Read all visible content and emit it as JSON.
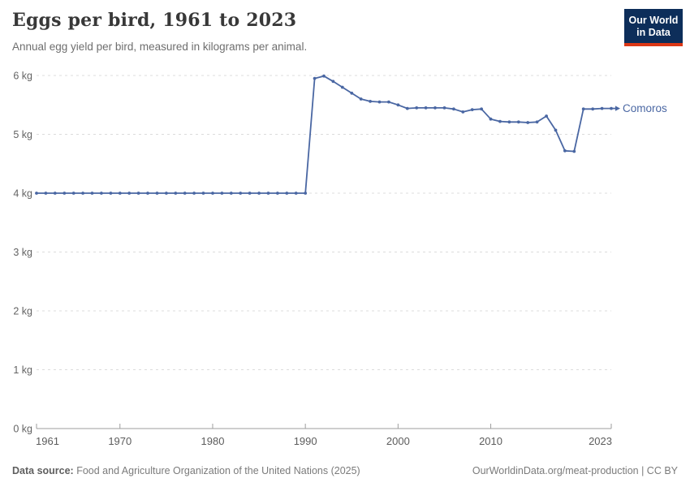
{
  "header": {
    "title": "Eggs per bird, 1961 to 2023",
    "subtitle": "Annual egg yield per bird, measured in kilograms per animal.",
    "logo": {
      "line1": "Our World",
      "line2": "in Data",
      "bg_color": "#0d2e5a",
      "accent_color": "#dc3715"
    }
  },
  "chart_data": {
    "type": "line",
    "title": "Eggs per bird, 1961 to 2023",
    "xlabel": "",
    "ylabel": "kg",
    "ylim": [
      0,
      6
    ],
    "y_ticks": [
      0,
      1,
      2,
      3,
      4,
      5,
      6
    ],
    "y_tick_labels": [
      "0 kg",
      "1 kg",
      "2 kg",
      "3 kg",
      "4 kg",
      "5 kg",
      "6 kg"
    ],
    "x_ticks": [
      1961,
      1970,
      1980,
      1990,
      2000,
      2010,
      2023
    ],
    "xlim": [
      1961,
      2023
    ],
    "grid": "horizontal-dashed",
    "legend_position": "end-of-line-label",
    "colors": {
      "line": "#4a67a3",
      "grid": "#dcdcdc",
      "axis": "#9e9e9e",
      "tick_text": "#636363"
    },
    "series": [
      {
        "name": "Comoros",
        "color": "#4a67a3",
        "x": [
          1961,
          1962,
          1963,
          1964,
          1965,
          1966,
          1967,
          1968,
          1969,
          1970,
          1971,
          1972,
          1973,
          1974,
          1975,
          1976,
          1977,
          1978,
          1979,
          1980,
          1981,
          1982,
          1983,
          1984,
          1985,
          1986,
          1987,
          1988,
          1989,
          1990,
          1991,
          1992,
          1993,
          1994,
          1995,
          1996,
          1997,
          1998,
          1999,
          2000,
          2001,
          2002,
          2003,
          2004,
          2005,
          2006,
          2007,
          2008,
          2009,
          2010,
          2011,
          2012,
          2013,
          2014,
          2015,
          2016,
          2017,
          2018,
          2019,
          2020,
          2021,
          2022,
          2023
        ],
        "values": [
          4,
          4,
          4,
          4,
          4,
          4,
          4,
          4,
          4,
          4,
          4,
          4,
          4,
          4,
          4,
          4,
          4,
          4,
          4,
          4,
          4,
          4,
          4,
          4,
          4,
          4,
          4,
          4,
          4,
          4,
          5.95,
          5.99,
          5.9,
          5.8,
          5.7,
          5.6,
          5.56,
          5.55,
          5.55,
          5.5,
          5.44,
          5.45,
          5.45,
          5.45,
          5.45,
          5.43,
          5.38,
          5.42,
          5.43,
          5.26,
          5.22,
          5.21,
          5.21,
          5.2,
          5.21,
          5.31,
          5.07,
          4.72,
          4.71,
          5.43,
          5.43,
          5.44,
          5.44
        ]
      }
    ]
  },
  "footer": {
    "source_label": "Data source:",
    "source_text": "Food and Agriculture Organization of the United Nations (2025)",
    "attribution": "OurWorldinData.org/meat-production | CC BY"
  }
}
